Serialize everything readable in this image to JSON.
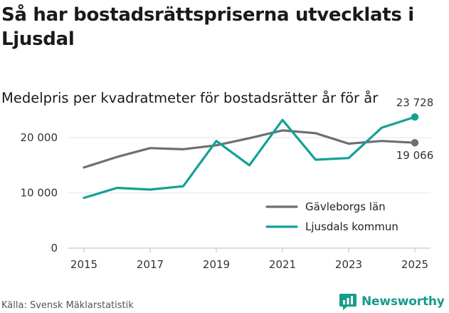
{
  "title": "Så har bostadsrättspriserna utvecklats i Ljusdal",
  "subtitle": "Medelpris per kvadratmeter för bostadsrätter år för år",
  "source": "Källa: Svensk Mäklarstatistik",
  "brand": {
    "name": "Newsworthy",
    "icon": "newsworthy-logo-icon",
    "color": "#159c8a"
  },
  "chart_data": {
    "type": "line",
    "xlim": [
      2015,
      2025
    ],
    "ylim": [
      0,
      24000
    ],
    "x_ticks": [
      2015,
      2017,
      2019,
      2021,
      2023,
      2025
    ],
    "x_tick_labels": [
      "2015",
      "2017",
      "2019",
      "2021",
      "2023",
      "2025"
    ],
    "y_ticks": [
      0,
      10000,
      20000
    ],
    "y_tick_labels": [
      "0",
      "10 000",
      "20 000"
    ],
    "grid": true,
    "legend_position": "bottom-right",
    "series": [
      {
        "name": "Gävleborgs län",
        "color": "#6e6e73",
        "x": [
          2015,
          2016,
          2017,
          2018,
          2019,
          2020,
          2021,
          2022,
          2023,
          2024,
          2025
        ],
        "values": [
          14600,
          16500,
          18100,
          17900,
          18600,
          19900,
          21300,
          20800,
          18900,
          19400,
          19066
        ],
        "end_label": "19 066"
      },
      {
        "name": "Ljusdals kommun",
        "color": "#13a195",
        "x": [
          2015,
          2016,
          2017,
          2018,
          2019,
          2020,
          2021,
          2022,
          2023,
          2024,
          2025
        ],
        "values": [
          9100,
          10900,
          10600,
          11200,
          19400,
          15000,
          23200,
          16000,
          16300,
          21800,
          23728
        ],
        "end_label": "23 728"
      }
    ]
  }
}
